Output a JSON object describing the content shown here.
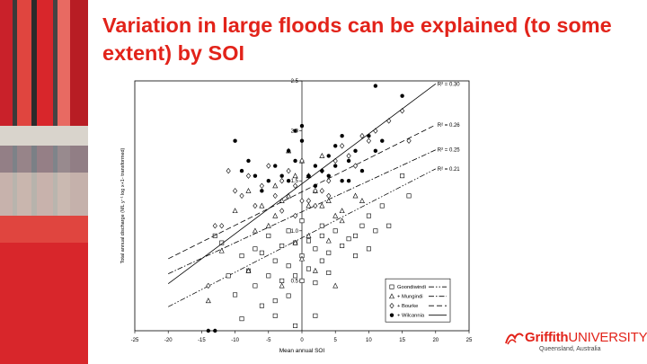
{
  "slide": {
    "title": "Variation in large floods can be explained (to some extent) by SOI"
  },
  "logo": {
    "brand": "Griffith",
    "brand_suffix": "UNIVERSITY",
    "location": "Queensland, Australia"
  },
  "colors": {
    "title": "#e2231a",
    "photo_red": "#d8262b",
    "photo_dark": "#262626",
    "marks": "#000000"
  },
  "chart_data": {
    "type": "scatter",
    "xlabel": "Mean annual SOI",
    "ylabel": "Total annual discharge (ML y⁻¹ log x+1- transformed)",
    "xlim": [
      -25,
      25
    ],
    "ylim": [
      0,
      2.5
    ],
    "xticks": [
      -25,
      -20,
      -15,
      -10,
      -5,
      0,
      5,
      10,
      15,
      20,
      25
    ],
    "yticks": [
      0.5,
      1.0,
      1.5,
      2.0,
      2.5
    ],
    "ytick_labels": [
      "0.5",
      "1.0",
      "1.5",
      "2.0",
      "2.5"
    ],
    "grid": false,
    "legend_position": "bottom-right",
    "series": [
      {
        "name": "Goondiwindi",
        "marker": "square",
        "line": "dash-dot-dot",
        "fit": {
          "intercept": 0.93,
          "slope": 0.0345,
          "x0": -20,
          "x1": 20
        },
        "r2_label": "R² = 0.21",
        "points": [
          [
            -13,
            0.95
          ],
          [
            -12,
            0.88
          ],
          [
            -11,
            0.55
          ],
          [
            -10,
            0.36
          ],
          [
            -9,
            0.75
          ],
          [
            -8,
            0.6
          ],
          [
            -7,
            0.82
          ],
          [
            -7,
            0.45
          ],
          [
            -6,
            0.78
          ],
          [
            -5,
            0.95
          ],
          [
            -5,
            0.55
          ],
          [
            -4,
            0.7
          ],
          [
            -4,
            0.3
          ],
          [
            -3,
            0.85
          ],
          [
            -3,
            0.5
          ],
          [
            -2,
            0.65
          ],
          [
            -2,
            0.35
          ],
          [
            -1,
            0.88
          ],
          [
            -1,
            0.55
          ],
          [
            0,
            0.75
          ],
          [
            0,
            0.5
          ],
          [
            1,
            0.9
          ],
          [
            1,
            0.62
          ],
          [
            2,
            0.82
          ],
          [
            2,
            0.48
          ],
          [
            3,
            0.7
          ],
          [
            3,
            0.95
          ],
          [
            4,
            0.78
          ],
          [
            4,
            0.58
          ],
          [
            5,
            1.0
          ],
          [
            6,
            0.85
          ],
          [
            7,
            0.92
          ],
          [
            8,
            0.95
          ],
          [
            9,
            1.05
          ],
          [
            10,
            1.15
          ],
          [
            11,
            1.0
          ],
          [
            12,
            1.25
          ],
          [
            13,
            1.05
          ],
          [
            15,
            1.55
          ],
          [
            16,
            1.35
          ],
          [
            -9,
            0.12
          ],
          [
            -6,
            0.25
          ],
          [
            -1,
            0.05
          ],
          [
            2,
            0.15
          ],
          [
            -4,
            0.15
          ],
          [
            8,
            0.75
          ],
          [
            10,
            0.82
          ],
          [
            0,
            1.1
          ],
          [
            3,
            1.05
          ],
          [
            -2,
            1.0
          ]
        ]
      },
      {
        "name": "+ Mungindi",
        "marker": "triangle",
        "line": "dash-dot",
        "fit": {
          "intercept": 1.19,
          "slope": 0.031,
          "x0": -20,
          "x1": 20
        },
        "r2_label": "R² = 0.25",
        "points": [
          [
            -14,
            0.3
          ],
          [
            -12,
            0.8
          ],
          [
            -10,
            1.2
          ],
          [
            -8,
            1.4
          ],
          [
            -7,
            1.0
          ],
          [
            -6,
            1.25
          ],
          [
            -5,
            1.05
          ],
          [
            -4,
            1.45
          ],
          [
            -3,
            1.3
          ],
          [
            -2,
            1.35
          ],
          [
            -1,
            1.55
          ],
          [
            0,
            1.7
          ],
          [
            1,
            1.25
          ],
          [
            2,
            1.4
          ],
          [
            3,
            1.25
          ],
          [
            4,
            1.3
          ],
          [
            5,
            1.15
          ],
          [
            6,
            1.2
          ],
          [
            8,
            1.35
          ],
          [
            9,
            1.3
          ],
          [
            -1,
            0.88
          ],
          [
            0,
            0.72
          ],
          [
            1,
            0.95
          ],
          [
            -3,
            0.45
          ],
          [
            2,
            0.6
          ],
          [
            4,
            0.9
          ],
          [
            -8,
            0.6
          ],
          [
            5,
            0.45
          ],
          [
            -2,
            1.8
          ],
          [
            1,
            1.55
          ],
          [
            3,
            1.75
          ],
          [
            -4,
            1.15
          ],
          [
            6,
            1.1
          ]
        ]
      },
      {
        "name": "+ Bourke",
        "marker": "diamond",
        "line": "dash",
        "fit": {
          "intercept": 1.39,
          "slope": 0.0335,
          "x0": -20,
          "x1": 20
        },
        "r2_label": "R² = 0.26",
        "points": [
          [
            -14,
            0.45
          ],
          [
            -13,
            1.05
          ],
          [
            -11,
            1.6
          ],
          [
            -10,
            1.4
          ],
          [
            -9,
            1.35
          ],
          [
            -8,
            1.55
          ],
          [
            -7,
            1.25
          ],
          [
            -6,
            1.45
          ],
          [
            -5,
            1.65
          ],
          [
            -4,
            1.35
          ],
          [
            -3,
            1.5
          ],
          [
            -2,
            1.6
          ],
          [
            -1,
            1.45
          ],
          [
            0,
            1.7
          ],
          [
            1,
            1.55
          ],
          [
            2,
            1.4
          ],
          [
            3,
            1.6
          ],
          [
            4,
            1.5
          ],
          [
            5,
            1.7
          ],
          [
            6,
            1.85
          ],
          [
            7,
            1.75
          ],
          [
            8,
            1.65
          ],
          [
            9,
            1.95
          ],
          [
            10,
            1.9
          ],
          [
            11,
            2.0
          ],
          [
            13,
            2.1
          ],
          [
            15,
            2.2
          ],
          [
            -3,
            1.2
          ],
          [
            2,
            1.25
          ],
          [
            4,
            1.35
          ],
          [
            -1,
            1.15
          ],
          [
            1,
            1.3
          ],
          [
            -12,
            1.05
          ],
          [
            16,
            1.9
          ],
          [
            0,
            1.3
          ],
          [
            3,
            1.4
          ]
        ]
      },
      {
        "name": "+ Wilcannia",
        "marker": "circle",
        "line": "solid",
        "fit": {
          "intercept": 1.47,
          "slope": 0.05,
          "x0": -20,
          "x1": 20
        },
        "r2_label": "R² = 0.30",
        "points": [
          [
            -14,
            0.0
          ],
          [
            -13,
            0.0
          ],
          [
            -10,
            1.9
          ],
          [
            -9,
            1.6
          ],
          [
            -8,
            1.7
          ],
          [
            -7,
            1.55
          ],
          [
            -6,
            1.4
          ],
          [
            -5,
            1.5
          ],
          [
            -4,
            1.65
          ],
          [
            -3,
            1.55
          ],
          [
            -2,
            1.8
          ],
          [
            -1,
            1.7
          ],
          [
            0,
            1.9
          ],
          [
            1,
            1.55
          ],
          [
            2,
            1.65
          ],
          [
            3,
            1.6
          ],
          [
            4,
            1.75
          ],
          [
            5,
            1.85
          ],
          [
            6,
            1.5
          ],
          [
            7,
            1.7
          ],
          [
            8,
            1.8
          ],
          [
            9,
            1.6
          ],
          [
            10,
            1.95
          ],
          [
            11,
            1.8
          ],
          [
            12,
            1.9
          ],
          [
            15,
            2.35
          ],
          [
            11,
            2.45
          ],
          [
            -1,
            2.0
          ],
          [
            0,
            2.05
          ],
          [
            2,
            1.45
          ],
          [
            -2,
            1.5
          ],
          [
            4,
            1.55
          ],
          [
            5,
            1.65
          ],
          [
            6,
            1.95
          ],
          [
            7,
            1.5
          ]
        ]
      }
    ]
  }
}
